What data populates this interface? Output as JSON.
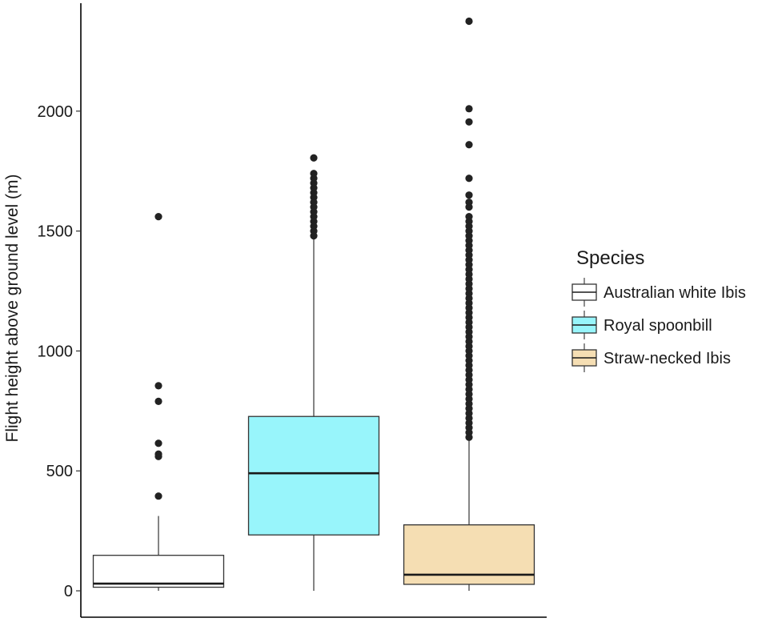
{
  "chart_data": {
    "type": "boxplot",
    "ylabel": "Flight height above ground level (m)",
    "xlabel": "",
    "ylim": [
      -110,
      2450
    ],
    "yticks": [
      0,
      500,
      1000,
      1500,
      2000
    ],
    "grid": false,
    "legend": {
      "title": "Species",
      "placement": "right"
    },
    "series": [
      {
        "name": "Australian white Ibis",
        "color": "#ffffff",
        "q1": 15,
        "median": 30,
        "q3": 148,
        "whisker_low": 0,
        "whisker_high": 312,
        "outliers": [
          395,
          560,
          570,
          615,
          790,
          855,
          1560
        ]
      },
      {
        "name": "Royal spoonbill",
        "color": "#98f5fb",
        "q1": 233,
        "median": 490,
        "q3": 727,
        "whisker_low": 0,
        "whisker_high": 1470,
        "outliers": [
          1480,
          1500,
          1520,
          1540,
          1560,
          1580,
          1600,
          1620,
          1640,
          1660,
          1680,
          1700,
          1720,
          1740,
          1805
        ]
      },
      {
        "name": "Straw-necked Ibis",
        "color": "#f5deb3",
        "q1": 27,
        "median": 67,
        "q3": 275,
        "whisker_low": 0,
        "whisker_high": 630,
        "outliers": [
          640,
          660,
          680,
          700,
          720,
          740,
          760,
          780,
          800,
          820,
          840,
          860,
          880,
          900,
          920,
          940,
          960,
          980,
          1000,
          1020,
          1040,
          1060,
          1080,
          1100,
          1120,
          1140,
          1160,
          1180,
          1200,
          1220,
          1240,
          1260,
          1280,
          1300,
          1320,
          1340,
          1360,
          1380,
          1400,
          1420,
          1440,
          1460,
          1480,
          1500,
          1520,
          1540,
          1560,
          1600,
          1620,
          1650,
          1720,
          1860,
          1955,
          2010,
          2375
        ]
      }
    ]
  }
}
